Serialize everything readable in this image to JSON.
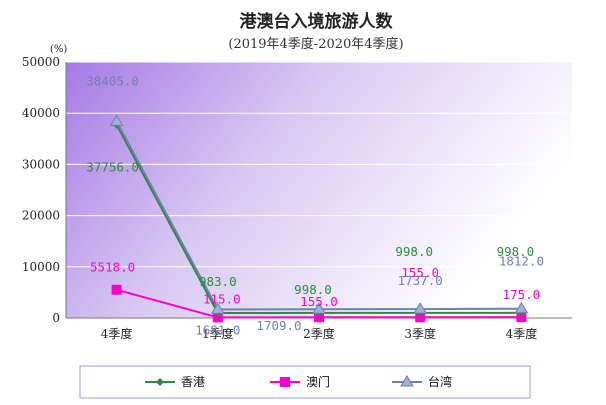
{
  "chart_data": {
    "type": "line",
    "title": "港澳台入境旅游人数",
    "subtitle": "(2019年4季度-2020年4季度)",
    "ylabel": "(%)",
    "categories": [
      "4季度",
      "1季度",
      "2季度",
      "3季度",
      "4季度"
    ],
    "ylim": [
      0,
      50000
    ],
    "yticks": [
      "0",
      "10000",
      "20000",
      "30000",
      "40000",
      "50000"
    ],
    "grid": true,
    "legend_position": "bottom",
    "series": [
      {
        "name": "香港",
        "color": "#2e8b3a",
        "marker": "diamond",
        "values": [
          37756,
          983,
          998,
          998,
          998
        ],
        "labels": [
          "37756.0",
          "983.0",
          "998.0",
          "998.0",
          "998.0"
        ]
      },
      {
        "name": "澳门",
        "color": "#ff00cc",
        "marker": "square",
        "values": [
          5518,
          115,
          155,
          155,
          175
        ],
        "labels": [
          "5518.0",
          "115.0",
          "155.0",
          "155.0",
          "175.0"
        ]
      },
      {
        "name": "台湾",
        "color": "#6f7fae",
        "marker": "triangle",
        "values": [
          38405,
          1681,
          1709,
          1737,
          1812
        ],
        "labels": [
          "38405.0",
          "1681.0",
          "1709.0",
          "1737.0",
          "1812.0"
        ]
      }
    ]
  }
}
